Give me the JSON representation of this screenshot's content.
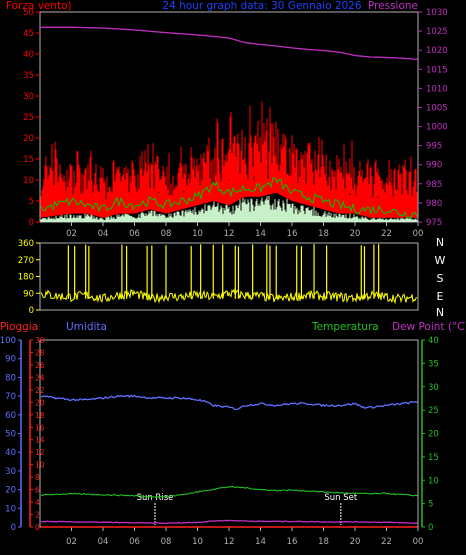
{
  "colors": {
    "background": "#000000",
    "axis": "#b0b0b0",
    "grid": "#2a2a2a",
    "wind": "#ff0000",
    "wind_gust": "#ff0000",
    "wind_avg": "#00c800",
    "wind_min": "#c8f0c8",
    "pressure": "#c030c0",
    "title": "#2040ff",
    "direction": "#ffff00",
    "rain": "#ff2020",
    "humidity": "#6070ff",
    "temperature": "#20c020",
    "dewpoint": "#c030c0",
    "sun": "#ffffff"
  },
  "header": {
    "left_label": "Forza vento)",
    "center_label": "24 hour graph data: 30 Gennaio 2026",
    "right_label": "Pressione"
  },
  "direction_letters": [
    "N",
    "W",
    "S",
    "E",
    "N"
  ],
  "lower_header": {
    "left1": "Pioggia",
    "left2": "Umidita",
    "right1": "Temperatura",
    "right2": "Dew Point (°C)"
  },
  "sun_labels": {
    "rise": "Sun Rise",
    "set": "Sun Set"
  },
  "chart_data": [
    {
      "id": "wind-pressure",
      "type": "line",
      "x_hours": [
        0,
        24
      ],
      "x_ticks": [
        "02",
        "04",
        "06",
        "08",
        "10",
        "12",
        "14",
        "16",
        "18",
        "20",
        "22",
        "00"
      ],
      "y_left_ticks": [
        0,
        5,
        10,
        15,
        20,
        25,
        30,
        35,
        40,
        45,
        50
      ],
      "ylim_left": [
        0,
        50
      ],
      "y_right_ticks": [
        975,
        980,
        985,
        990,
        995,
        1000,
        1005,
        1010,
        1015,
        1020,
        1025,
        1030
      ],
      "ylim_right": [
        975,
        1030
      ],
      "series": [
        {
          "name": "Pressione",
          "axis": "right",
          "x": [
            0,
            2,
            4,
            6,
            8,
            10,
            11,
            12,
            13,
            14,
            15,
            16,
            17,
            18,
            19,
            20,
            21,
            22,
            23,
            24
          ],
          "values": [
            1026,
            1026,
            1025.8,
            1025.3,
            1024.6,
            1024,
            1023.6,
            1023.2,
            1022,
            1021.5,
            1021.1,
            1020.6,
            1020.2,
            1019.9,
            1019.5,
            1018.6,
            1018.2,
            1018.1,
            1017.9,
            1017.6
          ]
        },
        {
          "name": "wind-avg",
          "axis": "left",
          "x": [
            0,
            1,
            2,
            3,
            4,
            5,
            6,
            7,
            8,
            9,
            10,
            11,
            12,
            13,
            14,
            15,
            16,
            17,
            18,
            19,
            20,
            21,
            22,
            23,
            24
          ],
          "values": [
            3,
            4,
            5,
            4,
            3,
            5,
            4,
            5,
            4,
            5,
            6,
            9,
            7,
            8,
            8,
            10,
            7,
            6,
            5,
            4,
            3,
            3,
            3,
            2,
            2
          ]
        }
      ],
      "envelope": {
        "hours": [
          0,
          1,
          2,
          3,
          4,
          5,
          6,
          7,
          8,
          9,
          10,
          11,
          12,
          13,
          14,
          15,
          16,
          17,
          18,
          19,
          20,
          21,
          22,
          23,
          24
        ],
        "gust_peak": [
          16,
          20,
          17,
          18,
          14,
          18,
          16,
          22,
          17,
          19,
          22,
          25,
          29,
          30,
          29,
          31,
          26,
          25,
          23,
          19,
          20,
          16,
          15,
          17,
          20
        ],
        "fill_top": [
          11,
          12,
          12,
          11,
          9,
          12,
          11,
          13,
          11,
          12,
          14,
          16,
          17,
          18,
          18,
          19,
          17,
          16,
          14,
          12,
          11,
          10,
          10,
          11,
          11
        ],
        "wind_low": [
          1,
          1.5,
          2,
          2,
          1,
          2,
          2,
          3,
          2,
          3,
          4,
          5,
          4,
          6,
          6,
          7,
          5,
          4,
          3,
          2,
          2,
          1,
          1,
          1,
          1
        ]
      }
    },
    {
      "id": "wind-direction",
      "type": "line",
      "x_hours": [
        0,
        24
      ],
      "y_ticks": [
        0,
        90,
        180,
        270,
        360
      ],
      "ylim": [
        0,
        360
      ],
      "baseline": [
        90,
        75,
        70,
        80,
        60,
        80,
        90,
        60,
        75,
        70,
        80,
        70,
        90,
        80,
        75,
        60,
        70,
        80,
        75,
        70,
        65,
        80,
        70,
        60,
        75
      ],
      "spike_hours": [
        1.8,
        2.2,
        2.9,
        3.1,
        5.2,
        5.5,
        6.8,
        7.1,
        8.0,
        9.6,
        10.2,
        11.0,
        11.6,
        12.4,
        12.6,
        13.5,
        14.4,
        14.6,
        15.0,
        16.3,
        16.6,
        17.4,
        18.2,
        20.4,
        20.6,
        21.2,
        21.5
      ]
    },
    {
      "id": "rain-humidity-temperature",
      "type": "line",
      "x_hours": [
        0,
        24
      ],
      "x_ticks": [
        "02",
        "04",
        "06",
        "08",
        "10",
        "12",
        "14",
        "16",
        "18",
        "20",
        "22",
        "00"
      ],
      "y_humidity_ticks": [
        0,
        10,
        20,
        30,
        40,
        50,
        60,
        70,
        80,
        90,
        100
      ],
      "ylim_humidity": [
        0,
        100
      ],
      "y_rain_ticks": [
        0,
        2,
        4,
        6,
        8,
        10,
        12,
        14,
        16,
        18,
        20,
        22,
        24,
        26,
        28,
        30
      ],
      "ylim_rain": [
        0,
        30
      ],
      "y_temp_ticks": [
        0,
        5,
        10,
        15,
        20,
        25,
        30,
        35,
        40
      ],
      "ylim_temp": [
        0,
        40
      ],
      "sunrise_hour": 7.3,
      "sunset_hour": 19.1,
      "series": [
        {
          "name": "Umidita",
          "axis": "humidity",
          "x": [
            0,
            1,
            2,
            3,
            4,
            5,
            6,
            7,
            8,
            9,
            10,
            10.5,
            11,
            12,
            12.5,
            13,
            14,
            15,
            16,
            17,
            18,
            19,
            20,
            20.5,
            21,
            22,
            23,
            24
          ],
          "values": [
            70,
            69,
            68,
            68,
            69,
            70,
            70,
            69,
            69,
            69,
            68,
            67,
            65,
            64,
            63,
            65,
            66,
            65,
            66,
            66,
            65,
            65,
            66,
            64,
            64,
            65,
            66,
            67
          ]
        },
        {
          "name": "Temperatura",
          "axis": "temp",
          "x": [
            0,
            1,
            2,
            3,
            4,
            5,
            6,
            7,
            8,
            9,
            10,
            11,
            12,
            13,
            14,
            15,
            16,
            17,
            18,
            19,
            20,
            21,
            22,
            23,
            24
          ],
          "values": [
            6.8,
            7,
            7.1,
            7,
            6.9,
            6.8,
            6.7,
            6.5,
            6.5,
            6.9,
            7.5,
            8.1,
            8.6,
            8.4,
            8,
            7.8,
            7.9,
            7.7,
            7.5,
            7.3,
            7.2,
            7.1,
            7.2,
            6.9,
            6.7
          ]
        },
        {
          "name": "Dew Point",
          "axis": "temp",
          "x": [
            0,
            2,
            4,
            6,
            8,
            10,
            11,
            12,
            13,
            14,
            16,
            18,
            20,
            22,
            24
          ],
          "values": [
            1.2,
            1.1,
            1,
            0.9,
            0.8,
            1,
            1.3,
            1.4,
            1.3,
            1.2,
            1.2,
            1.1,
            1.1,
            1,
            0.8
          ]
        },
        {
          "name": "Pioggia",
          "axis": "rain",
          "x": [
            0,
            24
          ],
          "values": [
            0,
            0
          ]
        }
      ]
    }
  ]
}
